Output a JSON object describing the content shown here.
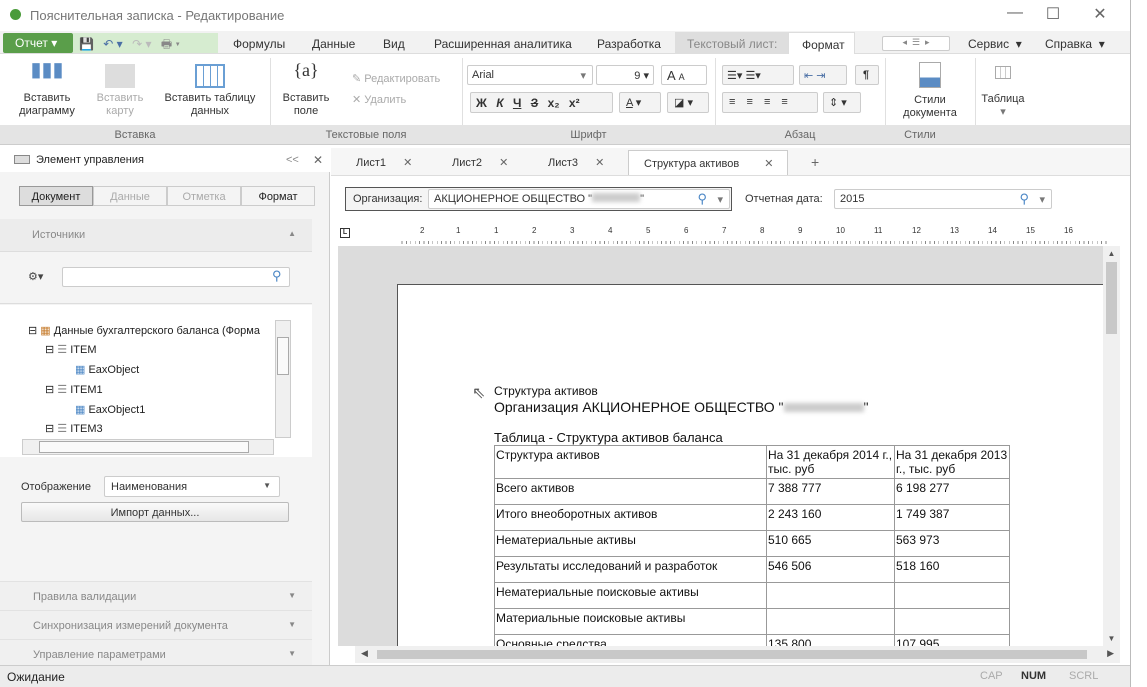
{
  "window": {
    "title": "Пояснительная записка - Редактирование"
  },
  "menu": {
    "report": "Отчет",
    "tabs": [
      "Формулы",
      "Данные",
      "Вид",
      "Расширенная аналитика",
      "Разработка"
    ],
    "context_group": "Текстовый лист:",
    "active_tab": "Формат",
    "service": "Сервис",
    "help": "Справка"
  },
  "ribbon": {
    "insert_chart": "Вставить диаграмму",
    "insert_map": "Вставить карту",
    "insert_table": "Вставить таблицу данных",
    "insert_field": "Вставить поле",
    "edit": "Редактировать",
    "delete": "Удалить",
    "font_name": "Arial",
    "font_size": "9",
    "bold": "Ж",
    "italic": "К",
    "underline": "Ч",
    "strike": "З",
    "doc_styles": "Стили документа",
    "table": "Таблица",
    "groups": {
      "insert": "Вставка",
      "text_fields": "Текстовые поля",
      "font": "Шрифт",
      "paragraph": "Абзац",
      "styles": "Стили"
    }
  },
  "left_panel": {
    "title": "Элемент управления",
    "segments": [
      "Документ",
      "Данные",
      "Отметка",
      "Формат"
    ],
    "sources": "Источники",
    "search_placeholder": "",
    "tree": [
      "Данные бухгалтерского баланса (Форма",
      "ITEM",
      "EaxObject",
      "ITEM1",
      "EaxObject1",
      "ITEM3"
    ],
    "display_label": "Отображение",
    "display_value": "Наименования",
    "import": "Импорт данных...",
    "sections": [
      "Правила валидации",
      "Синхронизация измерений документа",
      "Управление параметрами"
    ]
  },
  "doc": {
    "tabs": [
      "Лист1",
      "Лист2",
      "Лист3",
      "Структура активов"
    ],
    "org_label": "Организация:",
    "org_value": "АКЦИОНЕРНОЕ ОБЩЕСТВО \"",
    "date_label": "Отчетная дата:",
    "date_value": "2015",
    "ruler": [
      "2",
      "1",
      "1",
      "2",
      "3",
      "4",
      "5",
      "6",
      "7",
      "8",
      "9",
      "10",
      "11",
      "12",
      "13",
      "14",
      "15",
      "16"
    ],
    "heading1": "Структура активов",
    "heading2": "Организация АКЦИОНЕРНОЕ ОБЩЕСТВО \"",
    "table_title": "Таблица - Структура активов баланса",
    "table": {
      "headers": [
        "Структура активов",
        "На 31 декабря 2014 г., тыс. руб",
        "На 31 декабря 2013 г., тыс. руб"
      ],
      "rows": [
        [
          "Всего активов",
          "7 388 777",
          "6 198 277"
        ],
        [
          "Итого внеоборотных активов",
          "2 243 160",
          "1 749 387"
        ],
        [
          "Нематериальные активы",
          "510 665",
          "563 973"
        ],
        [
          "Результаты исследований и разработок",
          "546 506",
          "518 160"
        ],
        [
          "Нематериальные поисковые активы",
          "",
          ""
        ],
        [
          "Материальные поисковые активы",
          "",
          ""
        ],
        [
          "Основные средства",
          "135 800",
          "107 995"
        ]
      ]
    }
  },
  "status": {
    "text": "Ожидание",
    "cap": "CAP",
    "num": "NUM",
    "scrl": "SCRL"
  }
}
